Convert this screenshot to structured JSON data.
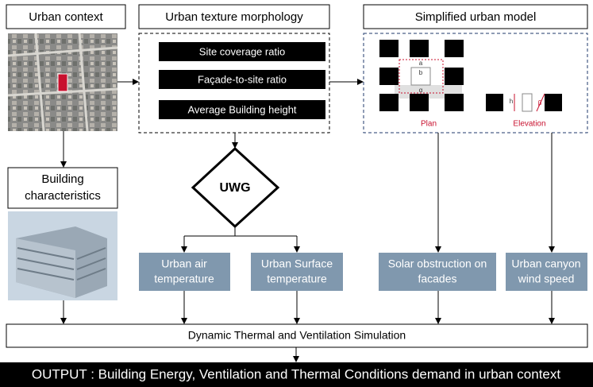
{
  "headers": [
    "Urban context",
    "Urban texture morphology",
    "Simplified urban model"
  ],
  "metrics": [
    "Site coverage ratio",
    "Façade-to-site ratio",
    "Average Building height"
  ],
  "model": {
    "plan_labels": [
      "a",
      "b",
      "α"
    ],
    "plan": "Plan",
    "elevation_labels": [
      "h",
      "β"
    ],
    "elevation": "Elevation"
  },
  "decision": "UWG",
  "building": [
    "Building",
    "characteristics"
  ],
  "outputs": [
    [
      "Urban air",
      "temperature"
    ],
    [
      "Urban Surface",
      "temperature"
    ],
    [
      "Solar obstruction on",
      "facades"
    ],
    [
      "Urban canyon",
      "wind speed"
    ]
  ],
  "simulation": "Dynamic Thermal  and  Ventilation Simulation",
  "output": "OUTPUT : Building Energy, Ventilation and Thermal Conditions demand in urban context"
}
